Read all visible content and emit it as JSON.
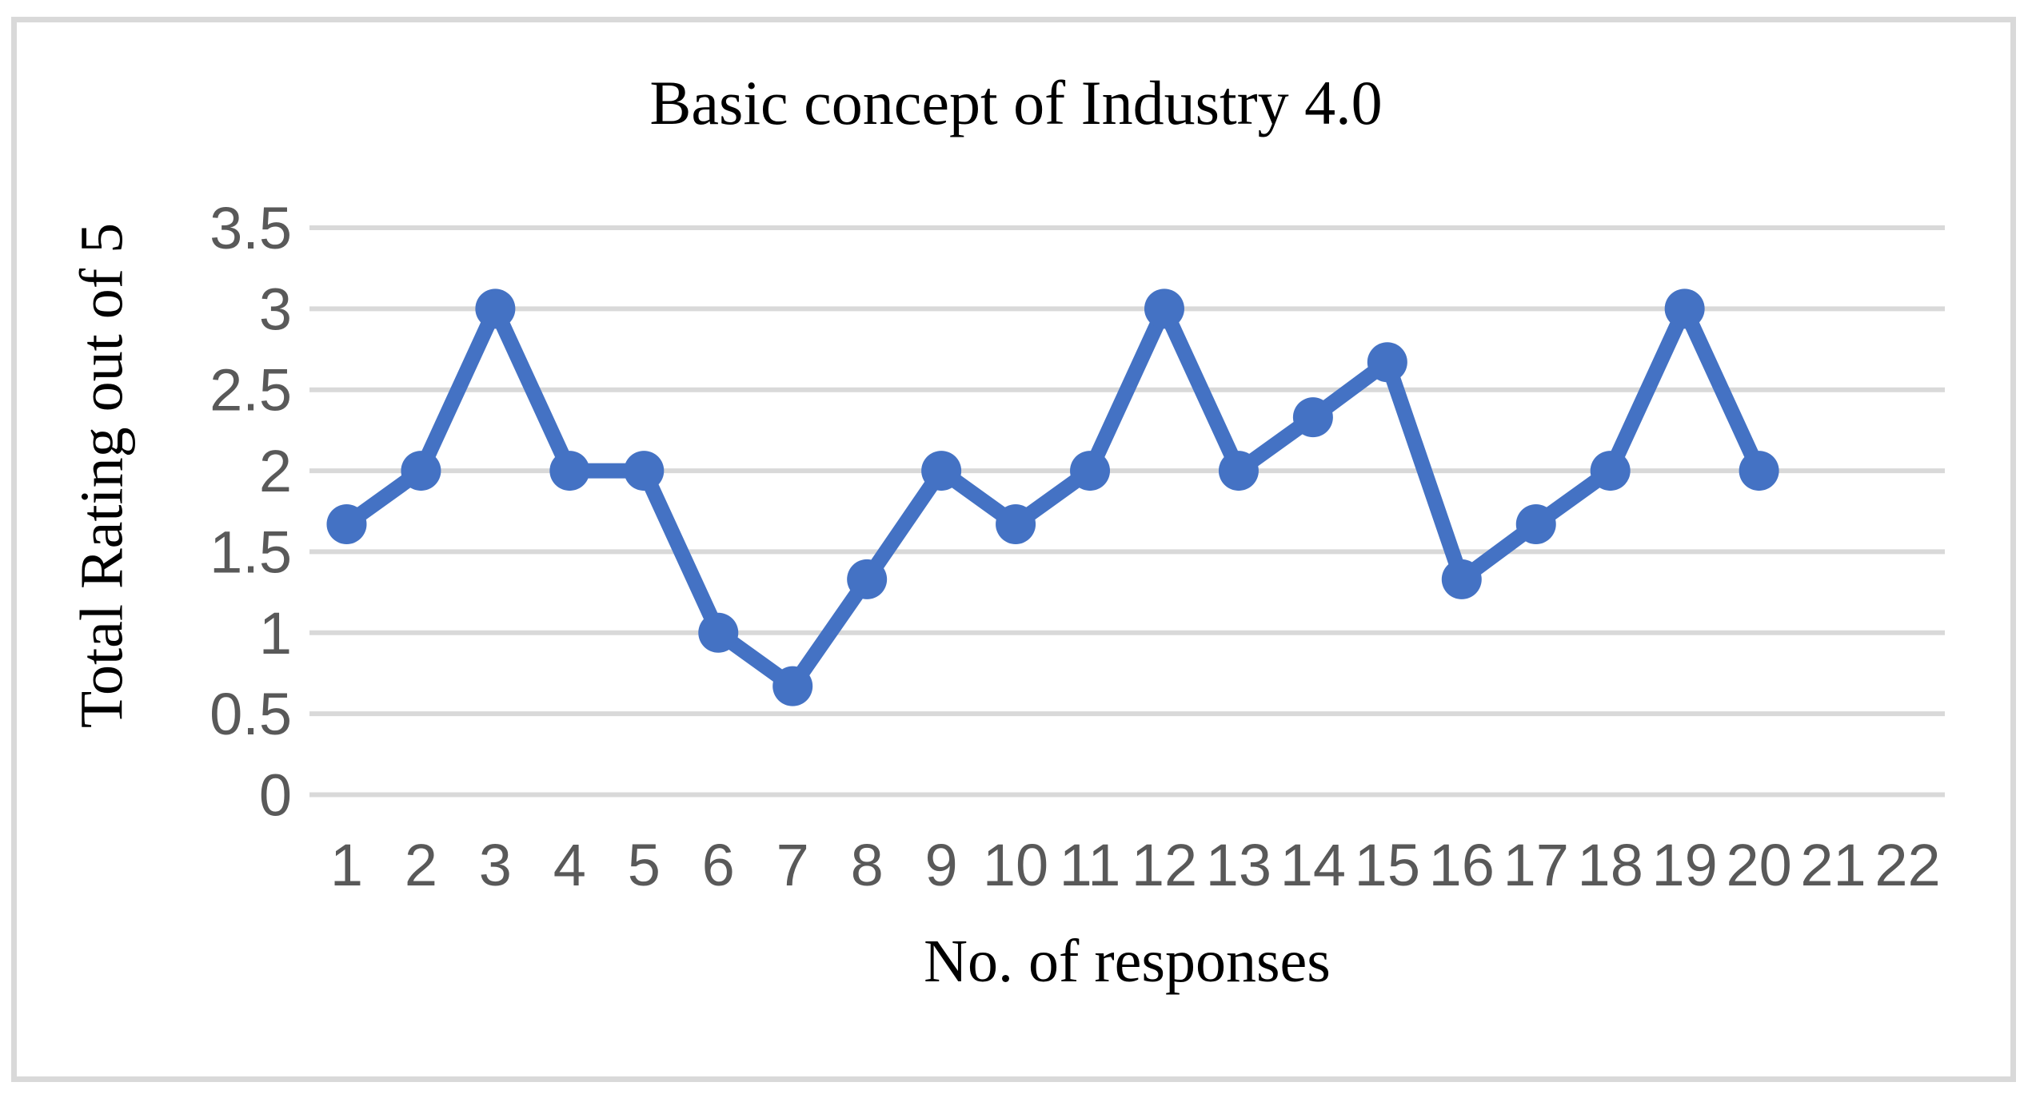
{
  "chart_data": {
    "type": "line",
    "title": "Basic concept of Industry 4.0",
    "xlabel": "No. of responses",
    "ylabel": "Total Rating out of 5",
    "x": [
      1,
      2,
      3,
      4,
      5,
      6,
      7,
      8,
      9,
      10,
      11,
      12,
      13,
      14,
      15,
      16,
      17,
      18,
      19,
      20
    ],
    "values": [
      1.67,
      2,
      3,
      2,
      2,
      1,
      0.67,
      1.33,
      2,
      1.67,
      2,
      3,
      2,
      2.33,
      2.67,
      1.33,
      1.67,
      2,
      3,
      2
    ],
    "x_tick_labels": [
      "1",
      "2",
      "3",
      "4",
      "5",
      "6",
      "7",
      "8",
      "9",
      "10",
      "11",
      "12",
      "13",
      "14",
      "15",
      "16",
      "17",
      "18",
      "19",
      "20",
      "21",
      "22"
    ],
    "y_tick_labels": [
      "0",
      "0.5",
      "1",
      "1.5",
      "2",
      "2.5",
      "3",
      "3.5"
    ],
    "ylim": [
      0,
      3.5
    ],
    "x_categories_shown": 22,
    "grid": "horizontal",
    "legend": "none",
    "marker": "circle"
  },
  "colors": {
    "series": "#4472C4",
    "gridline": "#D9D9D9",
    "tick_text": "#595959",
    "title_text": "#000000",
    "frame_border": "#D9D9D9",
    "background": "#FFFFFF"
  }
}
